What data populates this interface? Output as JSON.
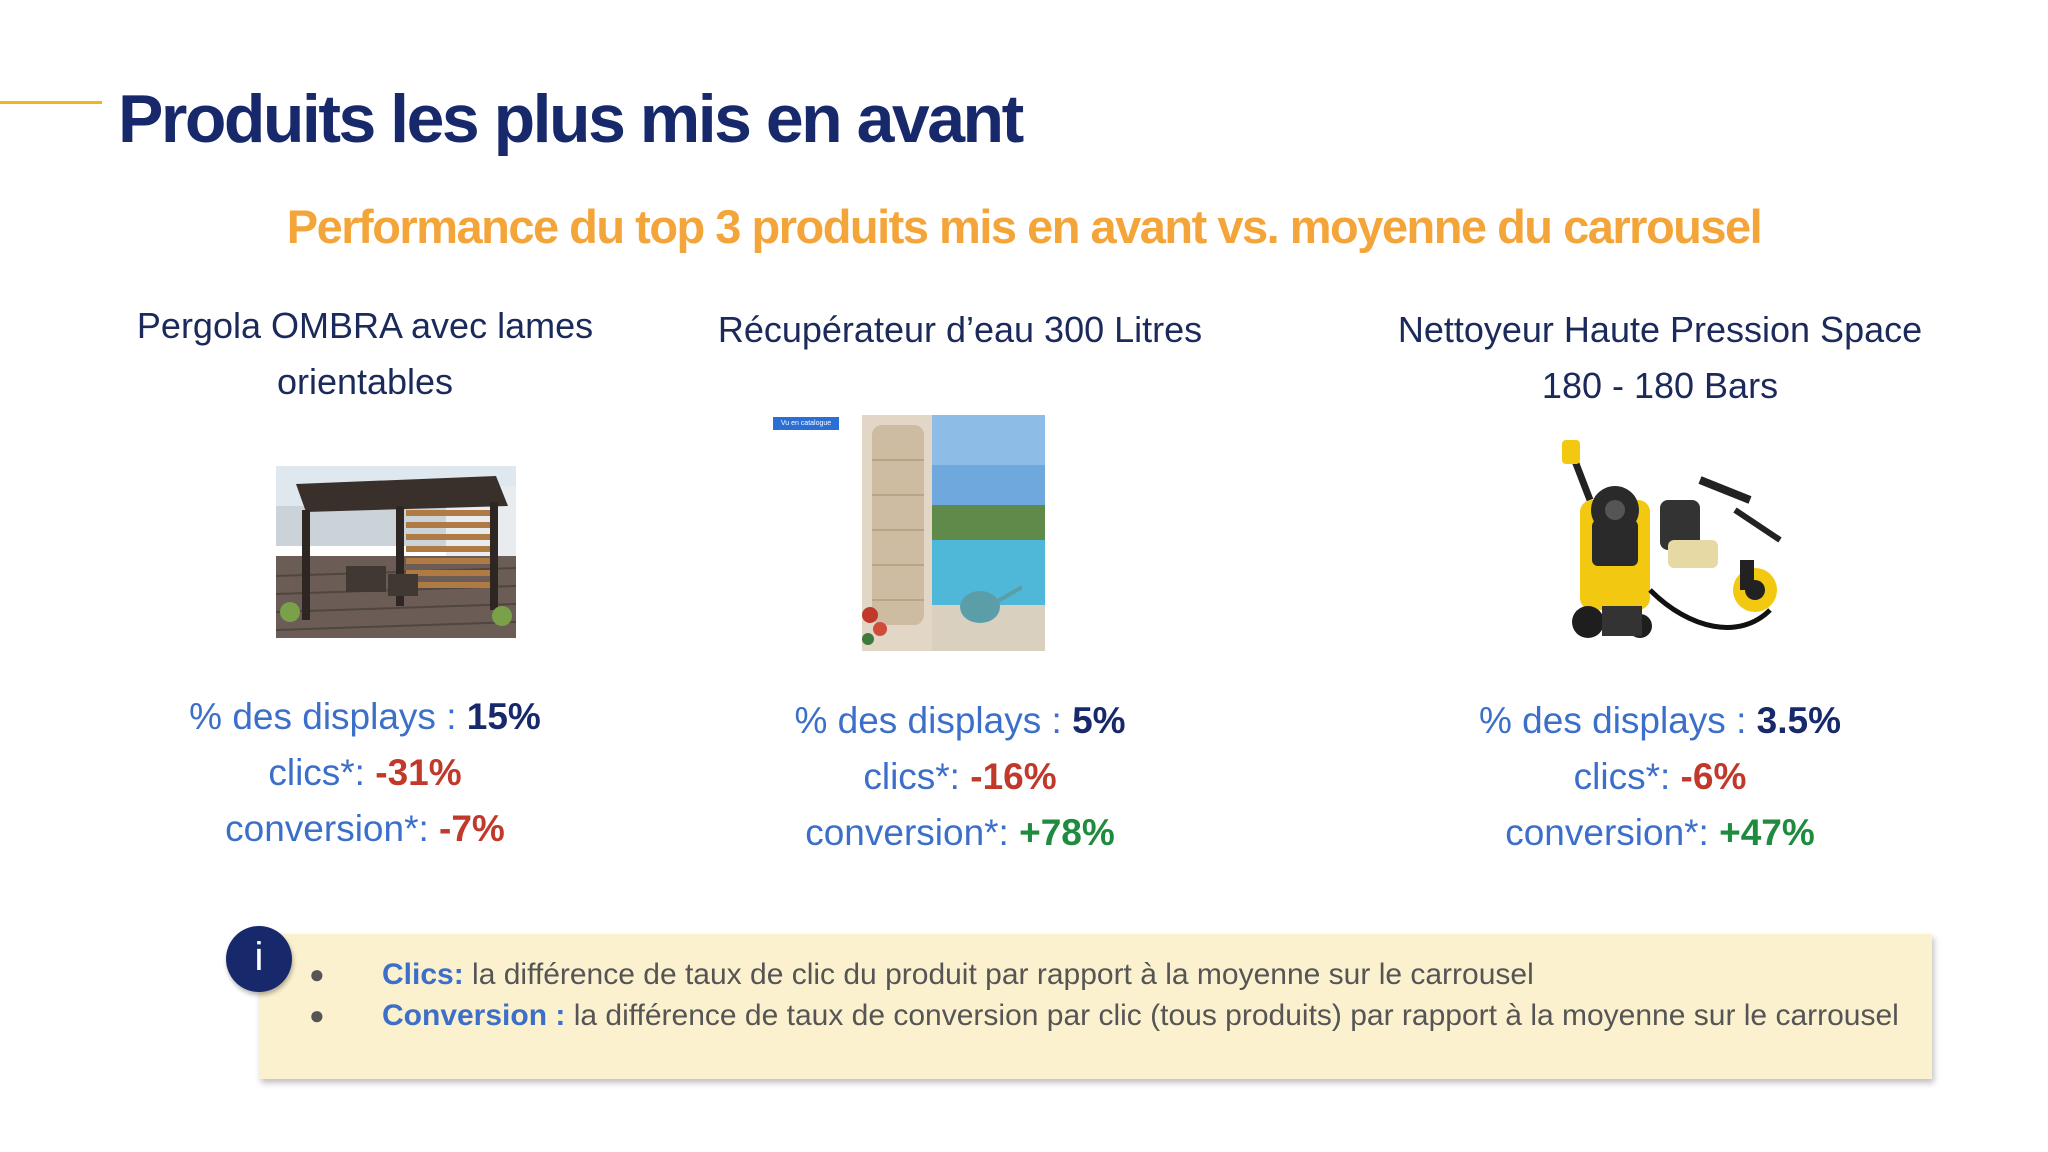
{
  "header": {
    "title": "Produits les plus mis en avant",
    "subtitle": "Performance du top 3 produits mis en avant vs. moyenne du carrousel"
  },
  "products": [
    {
      "name_line1": "Pergola OMBRA avec lames",
      "name_line2": "orientables",
      "image_icon": "pergola-photo",
      "displays_label": "% des displays : ",
      "displays_value": "15%",
      "clics_label": "clics*: ",
      "clics_value": "-31%",
      "conversion_label": "conversion*: ",
      "conversion_value": "-7%"
    },
    {
      "name_line1": "Récupérateur d’eau 300 Litres",
      "name_line2": "",
      "image_icon": "water-tank-photo",
      "image_badge": "Vu en catalogue",
      "displays_label": "% des displays : ",
      "displays_value": "5%",
      "clics_label": "clics*: ",
      "clics_value": "-16%",
      "conversion_label": "conversion*: ",
      "conversion_value": "+78%"
    },
    {
      "name_line1": "Nettoyeur Haute Pression Space",
      "name_line2": "180 - 180 Bars",
      "image_icon": "pressure-washer-photo",
      "displays_label": "% des displays : ",
      "displays_value": "3.5%",
      "clics_label": "clics*: ",
      "clics_value": "-6%",
      "conversion_label": "conversion*: ",
      "conversion_value": "+47%"
    }
  ],
  "info": {
    "badge": "i",
    "bullet": "●",
    "items": [
      {
        "term": "Clics:",
        "text": " la différence de taux de clic du produit par rapport à la moyenne sur le carrousel"
      },
      {
        "term": "Conversion :",
        "text": " la différence de taux de conversion par clic (tous produits) par rapport à la moyenne sur le carrousel"
      }
    ]
  },
  "colors": {
    "title": "#17296b",
    "subtitle": "#f4a53a",
    "accent": "#f3b51c",
    "negative": "#c0392b",
    "positive": "#1e8b3e",
    "label": "#3c6fc9",
    "info_bg": "#fcf1cf"
  }
}
